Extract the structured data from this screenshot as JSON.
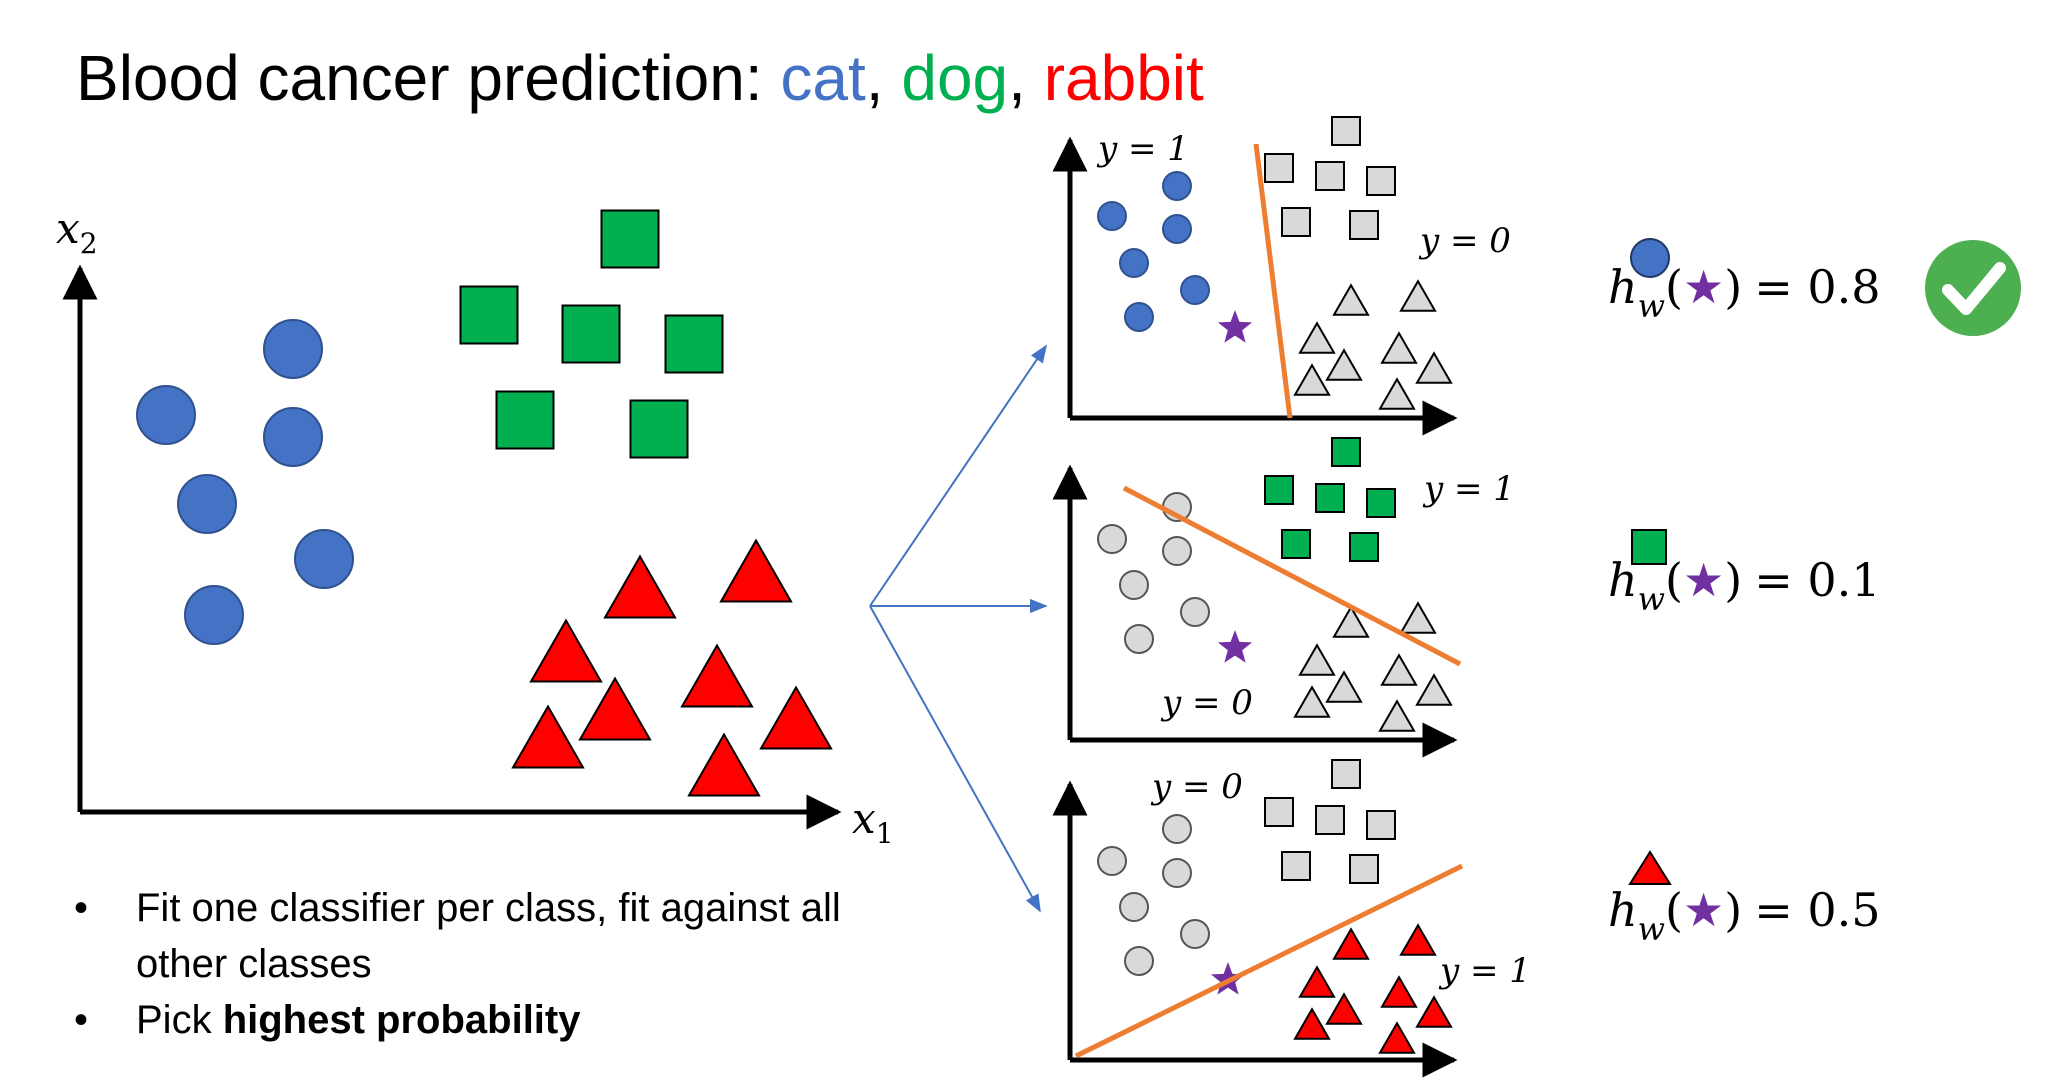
{
  "title": {
    "prefix": "Blood cancer prediction: ",
    "classes": [
      {
        "label": "cat",
        "color": "#4472C4"
      },
      {
        "label": "dog",
        "color": "#00B050"
      },
      {
        "label": "rabbit",
        "color": "#FF0000"
      }
    ],
    "separator": ", "
  },
  "main_plot": {
    "x_label": "x",
    "x_sub": "1",
    "y_label": "x",
    "y_sub": "2"
  },
  "subplots": [
    {
      "positive_label": "y = 1",
      "negative_label": "y = 0",
      "positive_shape": "circle",
      "probability_expr": "h",
      "probability_sub": "w",
      "probability_value": "= 0.8",
      "probability_icon": "circle",
      "selected": true
    },
    {
      "positive_label": "y = 1",
      "negative_label": "y = 0",
      "positive_shape": "square",
      "probability_expr": "h",
      "probability_sub": "w",
      "probability_value": "= 0.1",
      "probability_icon": "square",
      "selected": false
    },
    {
      "positive_label": "y = 1",
      "negative_label": "y = 0",
      "positive_shape": "triangle",
      "probability_expr": "h",
      "probability_sub": "w",
      "probability_value": "= 0.5",
      "probability_icon": "triangle",
      "selected": false
    }
  ],
  "bullets": [
    {
      "bullet": "•",
      "text": "Fit one classifier per class, fit against all other classes",
      "bold": ""
    },
    {
      "bullet": "•",
      "text": "Pick ",
      "bold": "highest probability"
    }
  ],
  "colors": {
    "cat": "#4472C4",
    "dog": "#00B050",
    "rabbit": "#FF0000",
    "other": "#D9D9D9",
    "boundary": "#ED7D31",
    "star": "#7030A0",
    "arrow": "#4472C4",
    "check": "#4CAF50"
  }
}
